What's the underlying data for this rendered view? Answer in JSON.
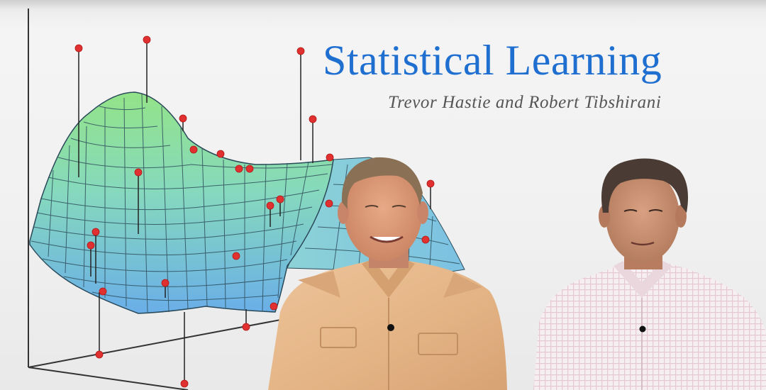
{
  "slide": {
    "title": "Statistical Learning",
    "authors": "Trevor Hastie and Robert Tibshirani"
  },
  "colors": {
    "title_blue": "#1f6fd1",
    "surface_top": "#8fe08a",
    "surface_mid": "#86d7c8",
    "surface_bottom": "#6aaee8",
    "data_point": "#e03030",
    "left_shirt": "#e7b98a",
    "right_shirt": "#f2e6ea"
  }
}
